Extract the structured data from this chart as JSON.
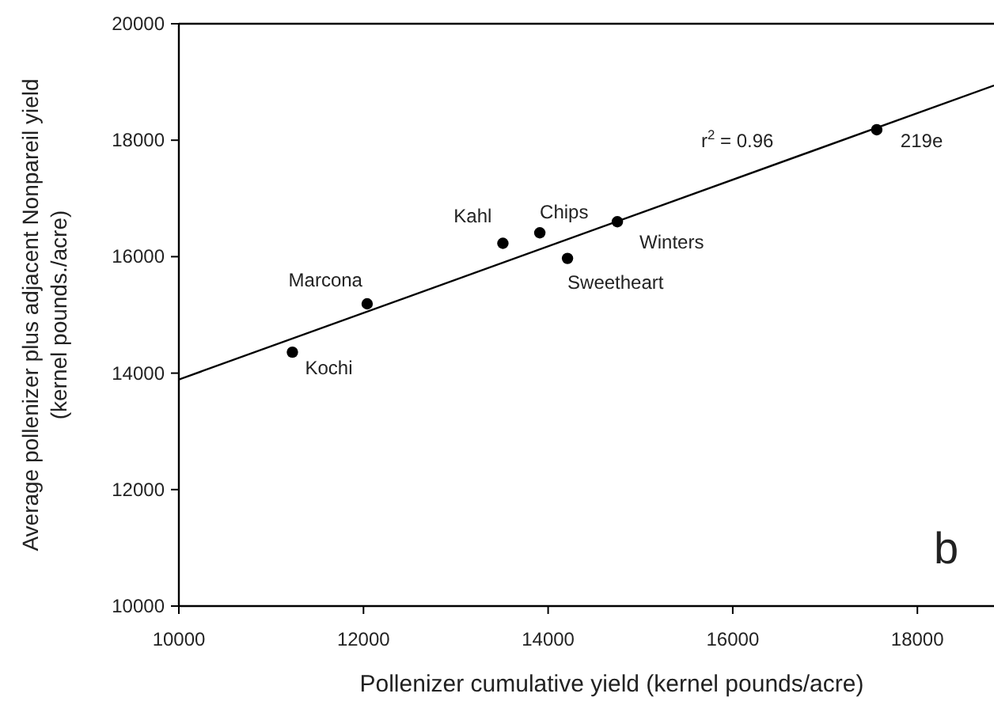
{
  "chart_data": {
    "type": "scatter",
    "xlabel": "Pollenizer cumulative yield (kernel pounds/acre)",
    "ylabel": "Average pollenizer plus adjacent Nonpareil yield\n(kernel pounds./acre)",
    "xlim": [
      10000,
      18830
    ],
    "ylim": [
      10000,
      20000
    ],
    "xticks": [
      10000,
      12000,
      14000,
      16000,
      18000
    ],
    "yticks": [
      10000,
      12000,
      14000,
      16000,
      18000,
      20000
    ],
    "series": [
      {
        "marker": "circle",
        "color": "#000000",
        "x": [
          11230,
          12040,
          13510,
          13910,
          14210,
          14750,
          17560
        ],
        "values": [
          14360,
          15190,
          16230,
          16410,
          15970,
          16600,
          18180
        ]
      },
      {
        "type": "line",
        "color": "#000000",
        "x": [
          10000,
          18830
        ],
        "values": [
          13890,
          18940
        ]
      }
    ],
    "annotations": [
      {
        "text": "Kochi",
        "x": 11230,
        "y": 14360
      },
      {
        "text": "Marcona",
        "x": 12040,
        "y": 15190
      },
      {
        "text": "Kahl",
        "x": 13510,
        "y": 16230
      },
      {
        "text": "Chips",
        "x": 13910,
        "y": 16410
      },
      {
        "text": "Sweetheart",
        "x": 14210,
        "y": 15970
      },
      {
        "text": "Winters",
        "x": 14750,
        "y": 16600
      },
      {
        "text": "219e",
        "x": 17560,
        "y": 18180
      },
      "r$^{2}$ = 0.96",
      "b"
    ]
  }
}
